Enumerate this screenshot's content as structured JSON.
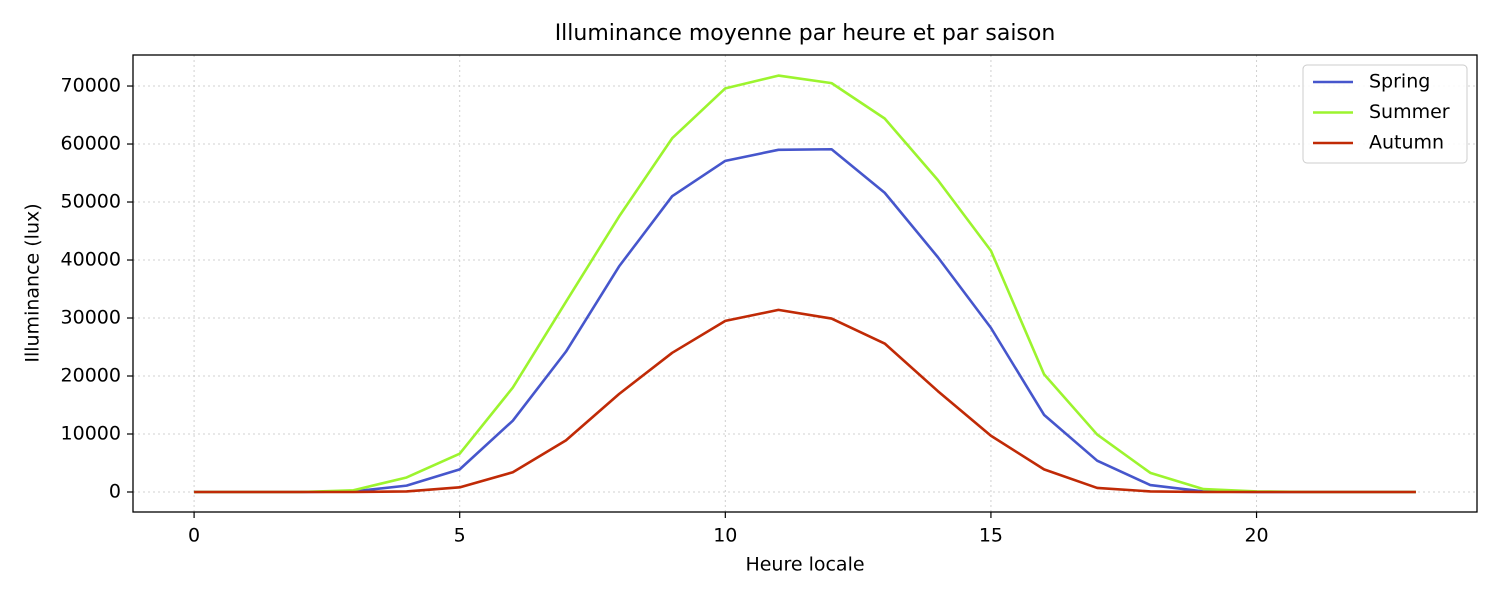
{
  "chart_data": {
    "type": "line",
    "title": "Illuminance moyenne par heure et par saison",
    "x_label": "Heure locale",
    "y_label": "Illuminance (lux)",
    "x": [
      0,
      1,
      2,
      3,
      4,
      5,
      6,
      7,
      8,
      9,
      10,
      11,
      12,
      13,
      14,
      15,
      16,
      17,
      18,
      19,
      20,
      21,
      22,
      23
    ],
    "series": [
      {
        "name": "Spring",
        "color": "#4656cc",
        "values": [
          0,
          0,
          0,
          100,
          1100,
          3900,
          12300,
          24200,
          38900,
          51000,
          57100,
          59000,
          59100,
          51600,
          40500,
          28300,
          13300,
          5400,
          1200,
          100,
          0,
          0,
          0,
          0
        ]
      },
      {
        "name": "Summer",
        "color": "#9cf42e",
        "values": [
          0,
          0,
          0,
          300,
          2500,
          6600,
          18000,
          32800,
          47500,
          61000,
          69600,
          71800,
          70500,
          64400,
          53800,
          41600,
          20300,
          9900,
          3300,
          500,
          100,
          0,
          0,
          0
        ]
      },
      {
        "name": "Autumn",
        "color": "#c02a06",
        "values": [
          0,
          0,
          0,
          0,
          100,
          800,
          3400,
          8900,
          16900,
          24000,
          29500,
          31400,
          29900,
          25600,
          17400,
          9700,
          3900,
          700,
          100,
          0,
          0,
          0,
          0,
          0
        ]
      }
    ],
    "xlim": [
      -1.15,
      24.15
    ],
    "ylim": [
      -3450,
      75350
    ],
    "xticks": [
      0,
      5,
      10,
      15,
      20
    ],
    "yticks": [
      0,
      10000,
      20000,
      30000,
      40000,
      50000,
      60000,
      70000
    ],
    "grid": true,
    "legend": "upper right"
  }
}
